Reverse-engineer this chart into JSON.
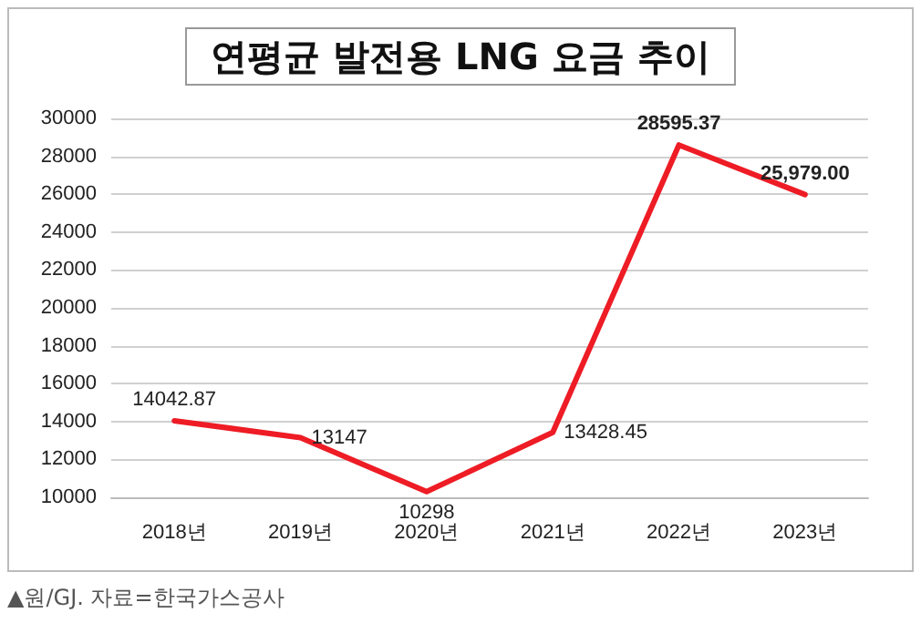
{
  "chart_data": {
    "type": "line",
    "title": "연평균 발전용 LNG 요금 추이",
    "categories": [
      "2018년",
      "2019년",
      "2020년",
      "2021년",
      "2022년",
      "2023년"
    ],
    "series": [
      {
        "color": "#ee1c25",
        "values": [
          14042.87,
          13147,
          10298,
          13428.45,
          28595.37,
          25979.0
        ],
        "value_labels": [
          "14042.87",
          "13147",
          "10298",
          "13428.45",
          "28595.37",
          "25,979.00"
        ]
      }
    ],
    "ylim": [
      10000,
      30000
    ],
    "yticks": [
      10000,
      12000,
      14000,
      16000,
      18000,
      20000,
      22000,
      24000,
      26000,
      28000,
      30000
    ],
    "grid": "y",
    "marker": "none",
    "line_style": "solid",
    "annotations": [
      "▲원/GJ. 자료=한국가스공사"
    ]
  }
}
